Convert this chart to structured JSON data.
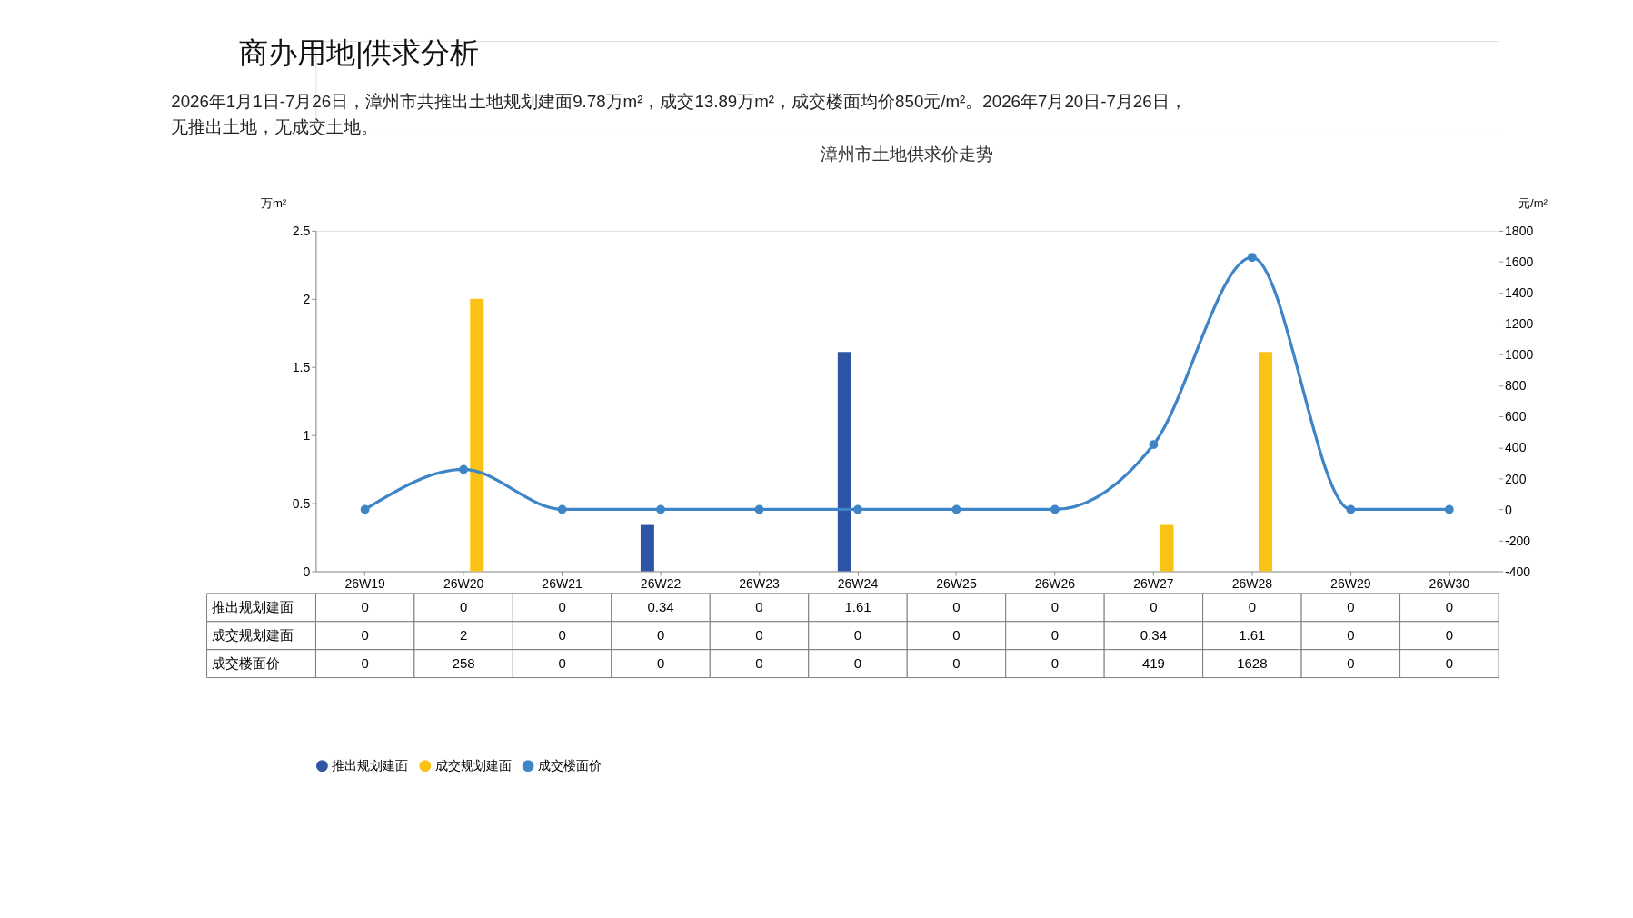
{
  "chart_data": {
    "type": "bar",
    "title": "漳州市土地供求价走势",
    "annotations": [
      "商办用地|供求分析",
      "2026年1月1日-7月26日，漳州市共推出土地规划建面9.78万m²，成交13.89万m²，成交楼面均价850元/m²。2026年7月20日-7月26日，无推出土地，无成交土地。"
    ],
    "ylabel": "万m²",
    "y2label": "元/m²",
    "categories": [
      "26W19",
      "26W20",
      "26W21",
      "26W22",
      "26W23",
      "26W24",
      "26W25",
      "26W26",
      "26W27",
      "26W28",
      "26W29",
      "26W30"
    ],
    "series": [
      {
        "name": "推出规划建面",
        "color": "#2e55a5",
        "values": [
          0,
          0,
          0,
          0.34,
          0,
          1.61,
          0,
          0,
          0,
          0,
          0,
          0
        ]
      },
      {
        "name": "成交规划建面",
        "color": "#fbc216",
        "values": [
          0,
          2,
          0,
          0,
          0,
          0,
          0,
          0,
          0.34,
          1.61,
          0,
          0
        ]
      },
      {
        "name": "成交楼面价",
        "color": "#3d85c6",
        "type": "line",
        "axis": "y2",
        "marker": "circle",
        "values": [
          0,
          258,
          0,
          0,
          0,
          0,
          0,
          0,
          419,
          1628,
          0,
          0
        ]
      }
    ],
    "ylim": [
      0,
      2.5
    ],
    "yticks": [
      0,
      0.5,
      1,
      1.5,
      2,
      2.5
    ],
    "y2lim": [
      -400,
      1800
    ],
    "y2ticks": [
      -400,
      -200,
      0,
      200,
      400,
      600,
      800,
      1000,
      1200,
      1400,
      1600,
      1800
    ],
    "data_labels": true,
    "grid": false,
    "legend": "bottom"
  }
}
